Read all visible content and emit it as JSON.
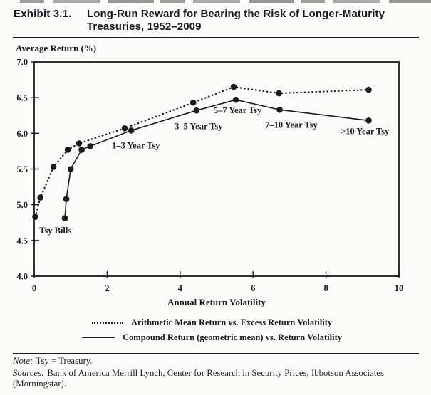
{
  "header": {
    "exhibit_label": "Exhibit 3.1.",
    "title_line1": "Long-Run Reward for Bearing the Risk of Longer-Maturity",
    "title_line2": "Treasuries, 1952–2009"
  },
  "chart_data": {
    "type": "line",
    "title": "",
    "y_axis_label": "Average Return (%)",
    "x_axis_label": "Annual Return Volatility",
    "xlim": [
      0,
      10
    ],
    "ylim": [
      4.0,
      7.0
    ],
    "x_ticks": [
      0,
      2,
      4,
      6,
      8,
      10
    ],
    "x_tick_labels": [
      "0",
      "2",
      "4",
      "6",
      "8",
      "10"
    ],
    "y_ticks": [
      7.0,
      6.5,
      6.0,
      5.5,
      5.0,
      4.5,
      4.0
    ],
    "y_tick_labels": [
      "7.0",
      "6.5",
      "6.0",
      "5.5",
      "5.0",
      "4.5",
      "4.0"
    ],
    "grid": false,
    "legend_position": "bottom",
    "series": [
      {
        "name": "Arithmetic Mean Return vs. Excess Return Volatility",
        "style": "dotted",
        "points": [
          [
            0.03,
            4.83
          ],
          [
            0.17,
            5.1
          ],
          [
            0.53,
            5.53
          ],
          [
            0.92,
            5.77
          ],
          [
            1.23,
            5.86
          ],
          [
            2.48,
            6.07
          ],
          [
            4.36,
            6.43
          ],
          [
            5.47,
            6.65
          ],
          [
            6.71,
            6.56
          ],
          [
            9.17,
            6.61
          ]
        ]
      },
      {
        "name": "Compound Return (geometric mean) vs. Return Volatility",
        "style": "solid",
        "points": [
          [
            0.84,
            4.81
          ],
          [
            0.88,
            5.08
          ],
          [
            1.0,
            5.5
          ],
          [
            1.3,
            5.77
          ],
          [
            1.54,
            5.82
          ],
          [
            2.66,
            6.04
          ],
          [
            4.45,
            6.32
          ],
          [
            5.53,
            6.47
          ],
          [
            6.73,
            6.33
          ],
          [
            9.17,
            6.18
          ]
        ]
      }
    ],
    "annotations": [
      {
        "label": "Tsy Bills",
        "x": 0.14,
        "y": 4.71
      },
      {
        "label": "1–3 Year Tsy",
        "x": 2.13,
        "y": 5.9
      },
      {
        "label": "3–5 Year Tsy",
        "x": 3.85,
        "y": 6.17
      },
      {
        "label": "5–7 Year Tsy",
        "x": 4.92,
        "y": 6.39
      },
      {
        "label": "7–10 Year Tsy",
        "x": 6.33,
        "y": 6.19
      },
      {
        "label": ">10 Year Tsy",
        "x": 8.4,
        "y": 6.1
      }
    ]
  },
  "footer": {
    "note_prefix": "Note:",
    "note_text": "Tsy = Treasury.",
    "sources_prefix": "Sources:",
    "sources_line1": "Bank of America Merrill Lynch, Center for Research in Security Prices, Ibbotson Associates",
    "sources_line2": "(Morningstar)."
  },
  "colors": {
    "ink": "#1b1b1b",
    "background": "#fcfcfa"
  }
}
